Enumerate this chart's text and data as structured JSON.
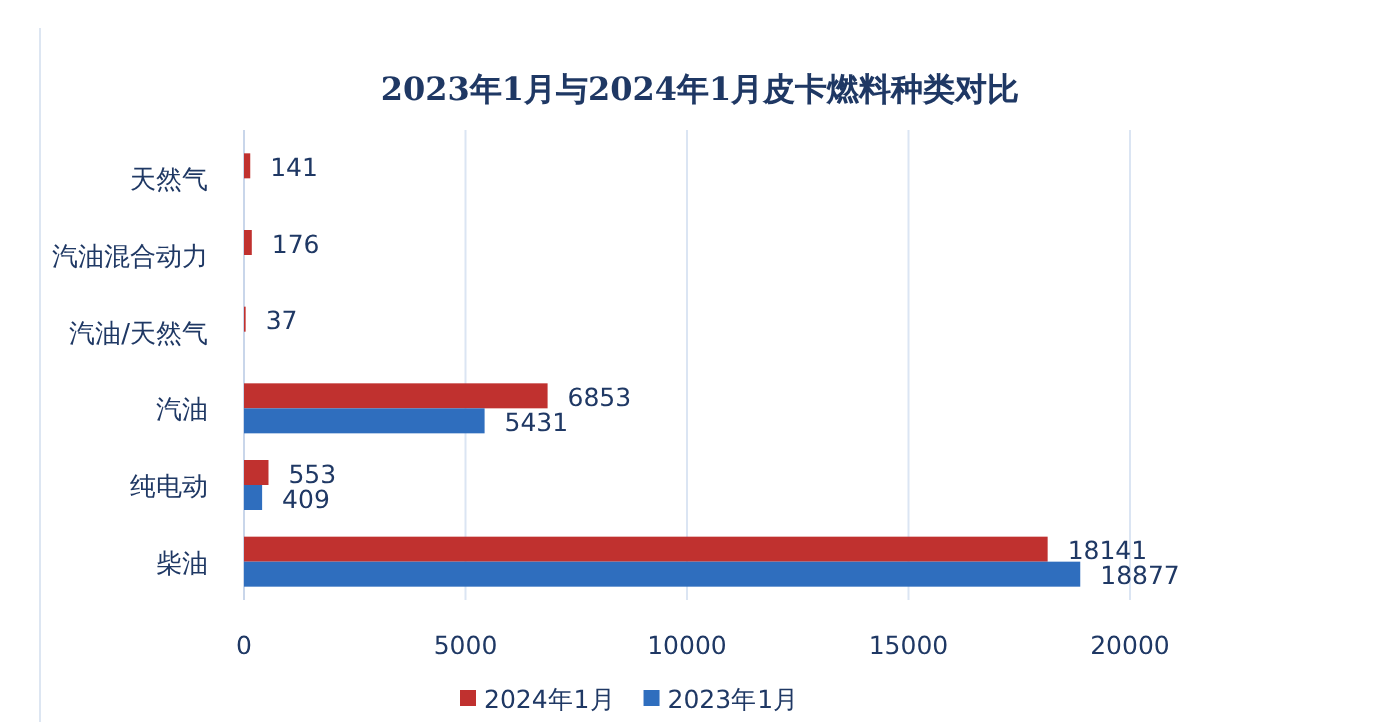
{
  "chart_data": {
    "type": "bar",
    "orientation": "horizontal",
    "title": "2023年1月与2024年1月皮卡燃料种类对比",
    "categories": [
      "天然气",
      "汽油混合动力",
      "汽油/天然气",
      "汽油",
      "纯电动",
      "柴油"
    ],
    "series": [
      {
        "name": "2024年1月",
        "color": "#c0312f",
        "values": [
          141,
          176,
          37,
          6853,
          553,
          18141
        ]
      },
      {
        "name": "2023年1月",
        "color": "#2f6ebe",
        "values": [
          null,
          null,
          null,
          5431,
          409,
          18877
        ]
      }
    ],
    "xlim": [
      0,
      20000
    ],
    "xticks": [
      0,
      5000,
      10000,
      15000,
      20000
    ],
    "grid": "x",
    "legend": "bottom",
    "data_labels": true
  }
}
